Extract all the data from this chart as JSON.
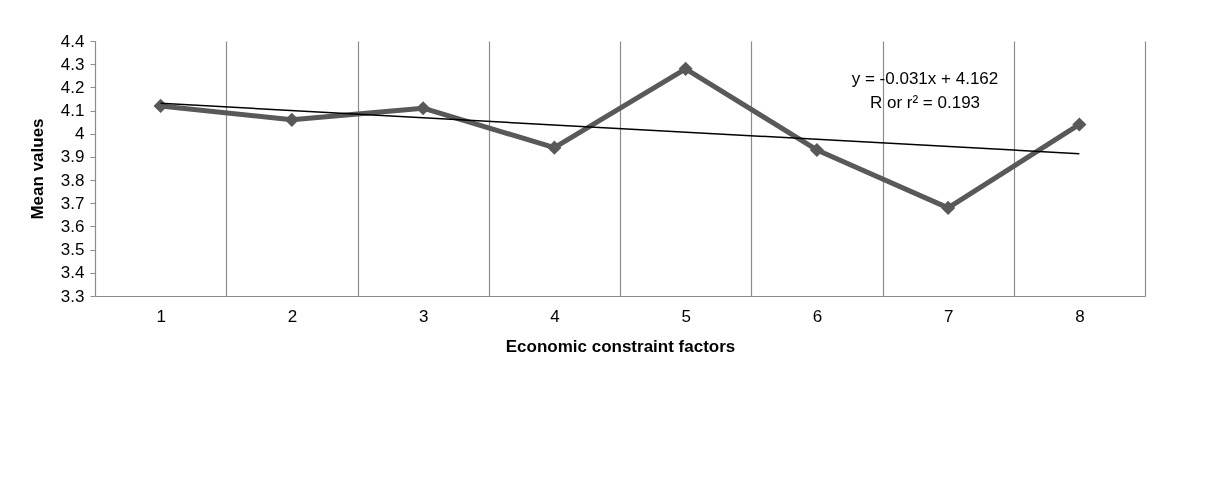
{
  "chart_data": {
    "type": "line",
    "xlabel": "Economic constraint factors",
    "ylabel": "Mean values",
    "categories": [
      "1",
      "2",
      "3",
      "4",
      "5",
      "6",
      "7",
      "8"
    ],
    "series": [
      {
        "color": "#595959",
        "values": [
          4.12,
          4.06,
          4.11,
          3.94,
          4.28,
          3.93,
          3.68,
          4.04
        ]
      },
      {
        "type": "line",
        "x": [
          "1",
          "8"
        ],
        "color": "#000000",
        "values": [
          4.131,
          3.914
        ],
        "marker": "none"
      }
    ],
    "annotations": [
      "y = -0.031x + 4.162",
      "R or r² = 0.193"
    ],
    "ylim": [
      3.3,
      4.4
    ],
    "yticks": [
      3.3,
      3.4,
      3.5,
      3.6,
      3.7,
      3.8,
      3.9,
      4,
      4.1,
      4.2,
      4.3,
      4.4
    ],
    "grid": "x",
    "marker": "diamond"
  }
}
